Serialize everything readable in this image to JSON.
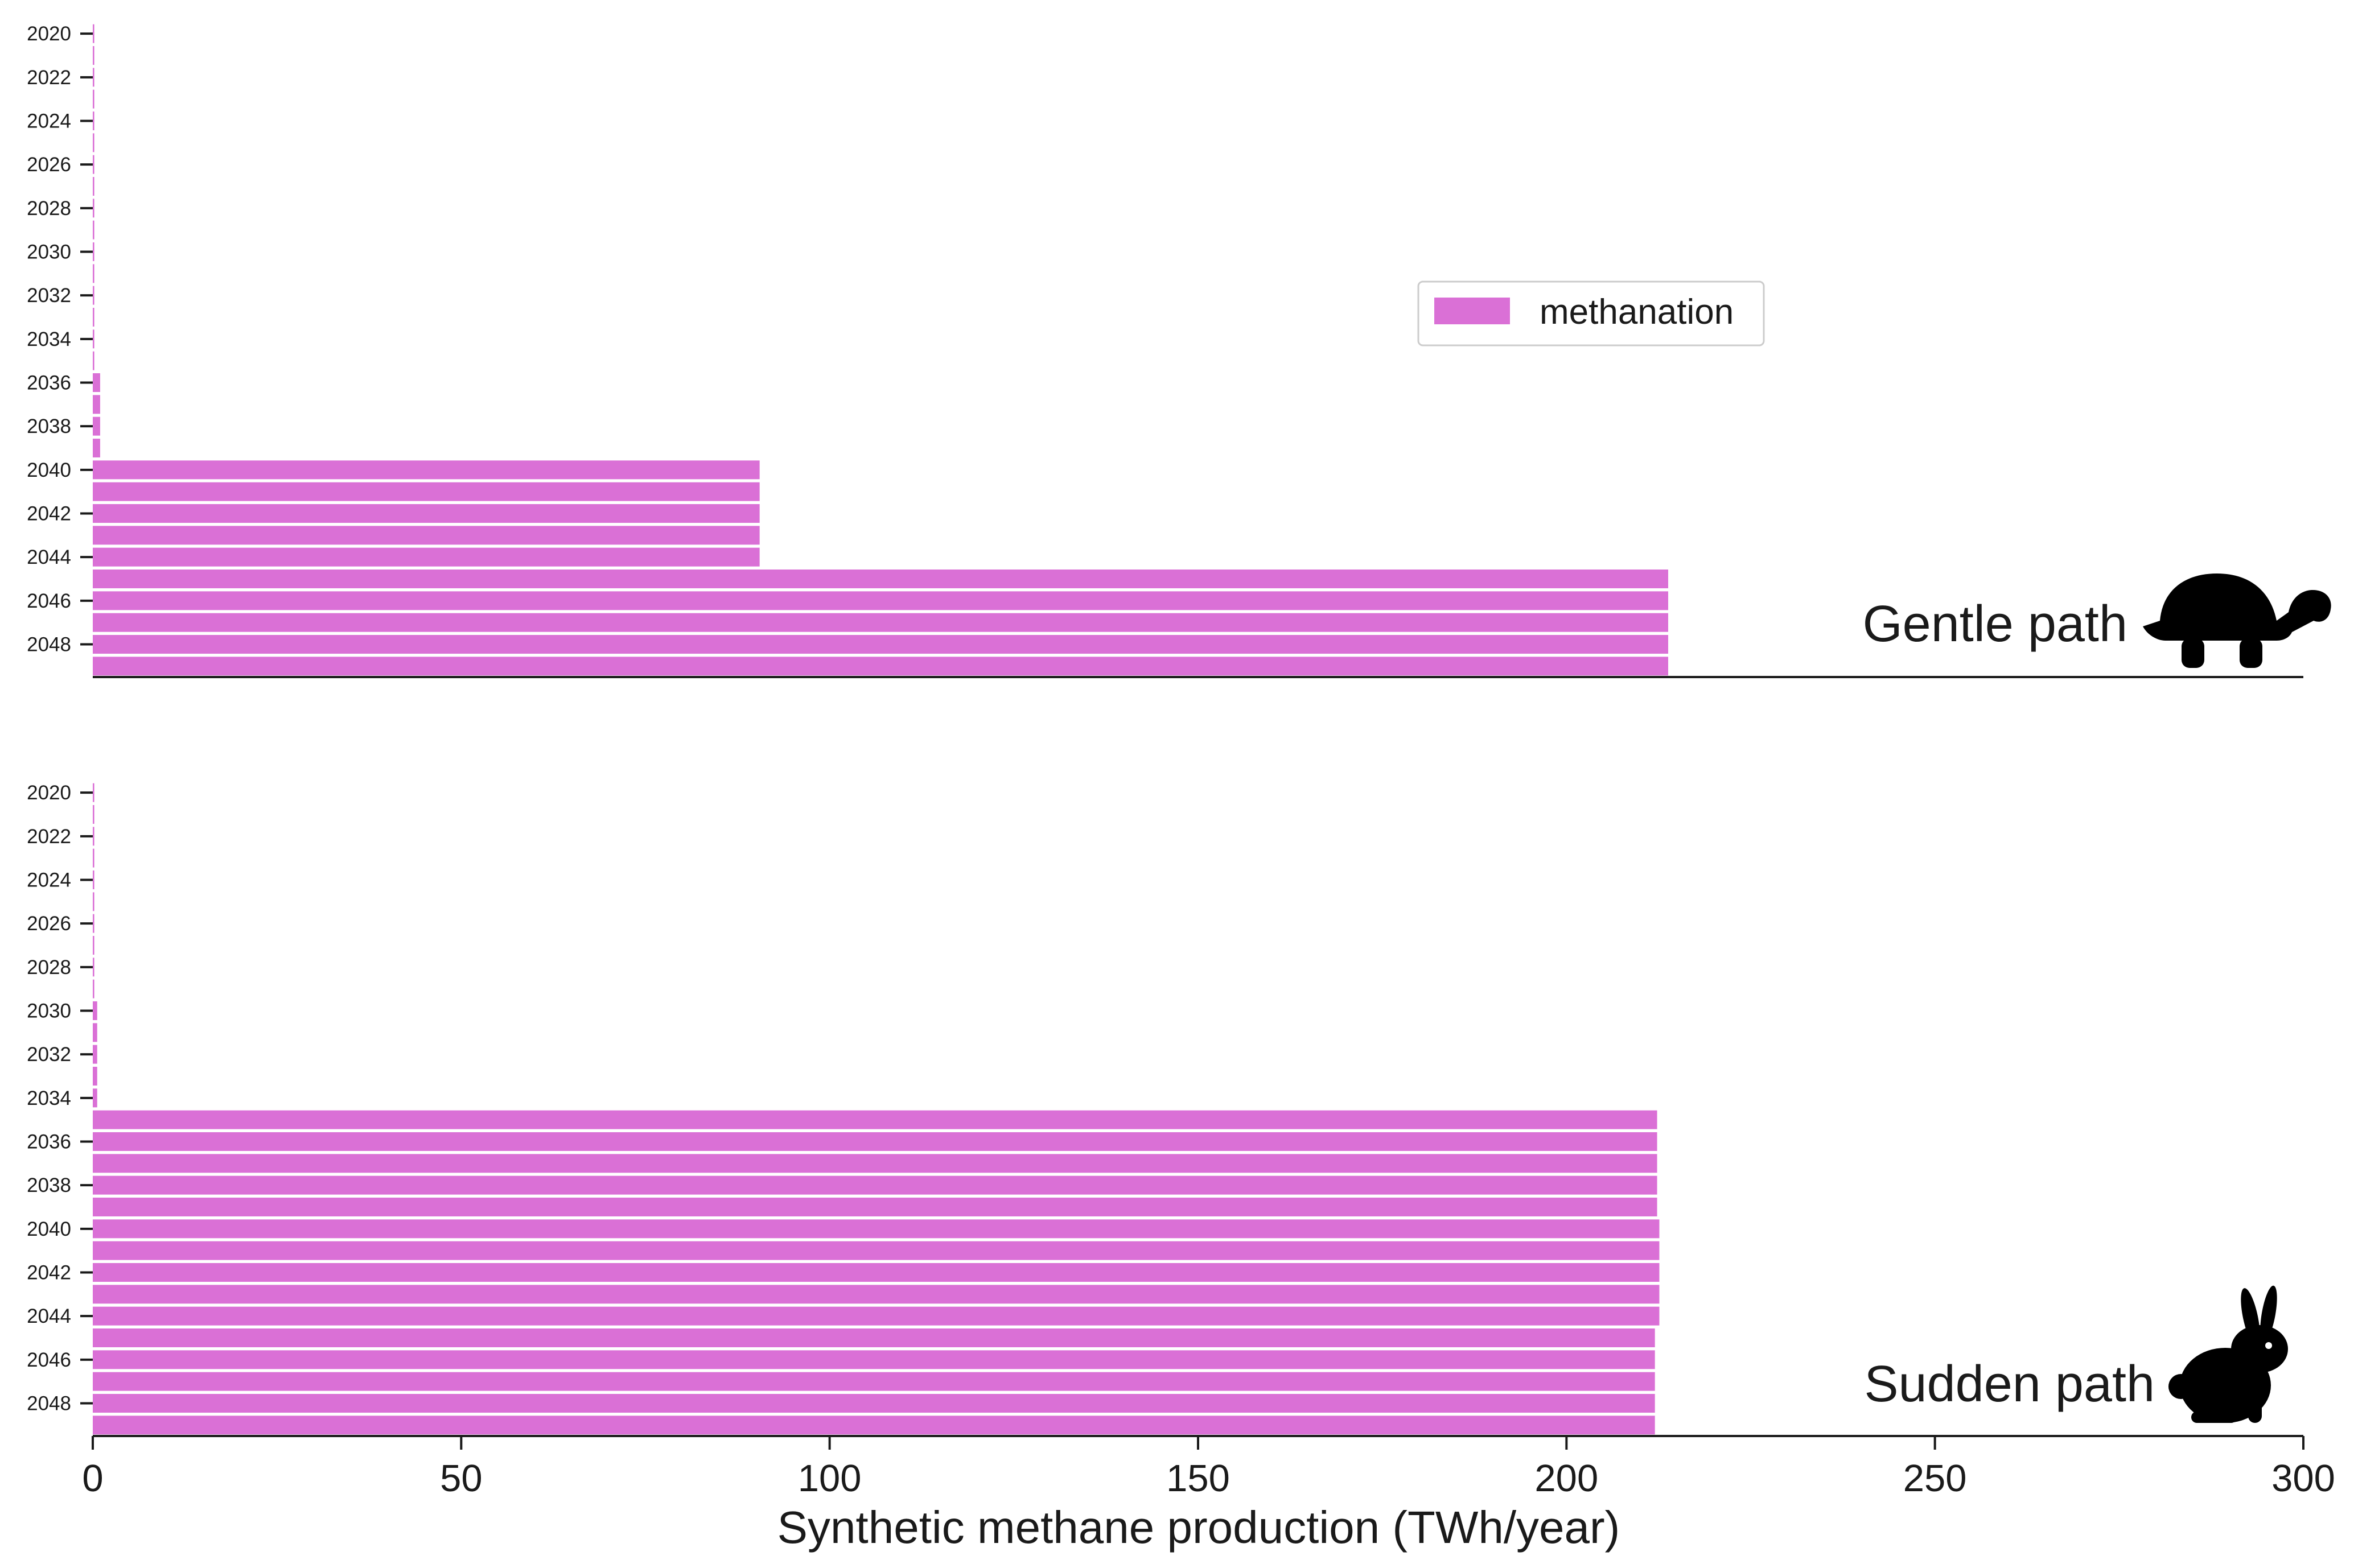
{
  "chart_data": {
    "type": "bar",
    "orientation": "horizontal",
    "color": "#da70d6",
    "legend": {
      "entries": [
        "methanation"
      ],
      "placement": "upper-right of top panel"
    },
    "xlabel": "Synthetic methane production (TWh/year)",
    "xlim": [
      0,
      300
    ],
    "xticks": [
      "0",
      "50",
      "100",
      "150",
      "200",
      "250",
      "300"
    ],
    "yticks": [
      "2020",
      "2022",
      "2024",
      "2026",
      "2028",
      "2030",
      "2032",
      "2034",
      "2036",
      "2038",
      "2040",
      "2042",
      "2044",
      "2046",
      "2048"
    ],
    "years": [
      2020,
      2021,
      2022,
      2023,
      2024,
      2025,
      2026,
      2027,
      2028,
      2029,
      2030,
      2031,
      2032,
      2033,
      2034,
      2035,
      2036,
      2037,
      2038,
      2039,
      2040,
      2041,
      2042,
      2043,
      2044,
      2045,
      2046,
      2047,
      2048,
      2049
    ],
    "panels": [
      {
        "label": "Gentle path",
        "icon": "turtle-icon",
        "series": [
          {
            "name": "methanation",
            "values": [
              0.2,
              0.2,
              0.2,
              0.2,
              0.2,
              0.2,
              0.2,
              0.2,
              0.2,
              0.2,
              0.2,
              0.2,
              0.2,
              0.2,
              0.2,
              0.2,
              1.0,
              1.0,
              1.0,
              1.0,
              90.5,
              90.5,
              90.5,
              90.5,
              90.5,
              213.8,
              213.8,
              213.8,
              213.8,
              213.8
            ]
          }
        ]
      },
      {
        "label": "Sudden path",
        "icon": "rabbit-icon",
        "series": [
          {
            "name": "methanation",
            "values": [
              0.2,
              0.2,
              0.2,
              0.2,
              0.2,
              0.2,
              0.2,
              0.2,
              0.2,
              0.2,
              0.6,
              0.6,
              0.6,
              0.6,
              0.6,
              212.3,
              212.3,
              212.3,
              212.3,
              212.3,
              212.6,
              212.6,
              212.6,
              212.6,
              212.6,
              212.0,
              212.0,
              212.0,
              212.0,
              212.0
            ]
          }
        ]
      }
    ]
  }
}
